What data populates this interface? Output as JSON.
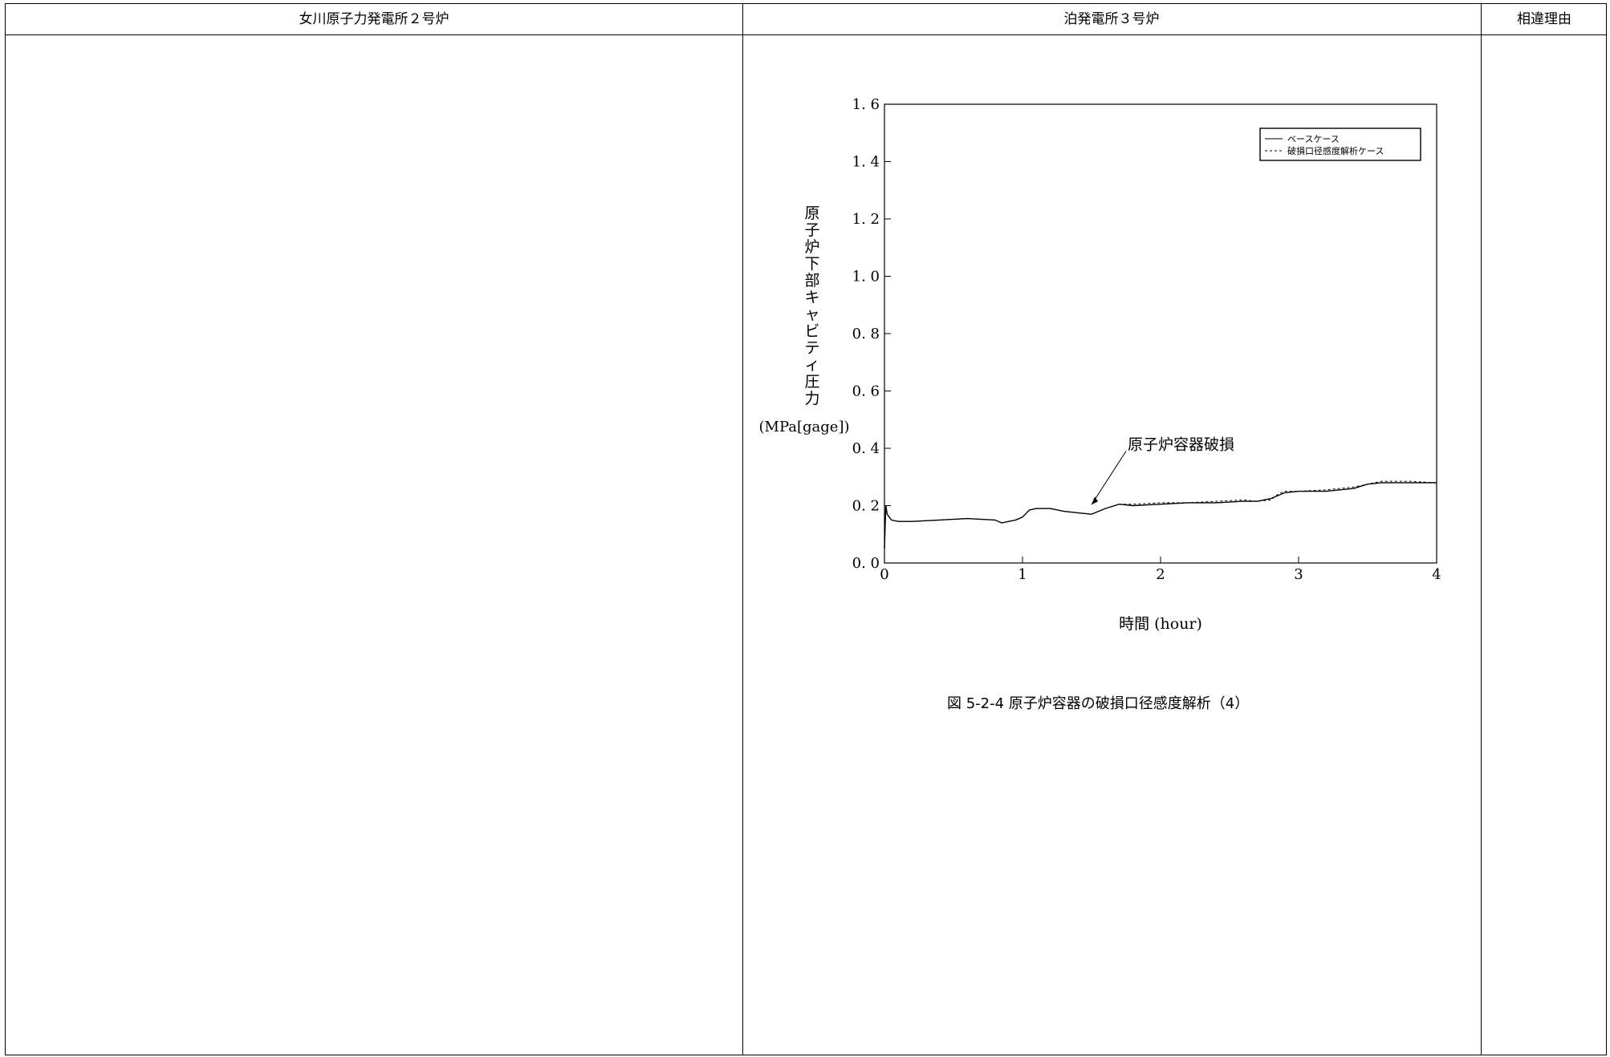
{
  "table": {
    "headers": [
      "女川原子力発電所２号炉",
      "泊発電所３号炉",
      "相違理由"
    ]
  },
  "figure": {
    "caption": "図 5-2-4 原子炉容器の破損口径感度解析（4）"
  },
  "chart_data": {
    "type": "line",
    "title": "",
    "ylabel_lines": [
      "原",
      "子",
      "炉",
      "下",
      "部",
      "キ",
      "ャ",
      "ビ",
      "テ",
      "ィ",
      "圧",
      "力"
    ],
    "ylabel_unit": "(MPa[gage])",
    "xlabel": "時間 (hour)",
    "xlim": [
      0,
      4
    ],
    "ylim": [
      0,
      1.6
    ],
    "xticks": [
      "0",
      "1",
      "2",
      "3",
      "4"
    ],
    "yticks": [
      "0. 0",
      "0. 2",
      "0. 4",
      "0. 6",
      "0. 8",
      "1. 0",
      "1. 2",
      "1. 4",
      "1. 6"
    ],
    "legend_position": "top-right",
    "annotation": {
      "text": "原子炉容器破損",
      "x": 1.5,
      "y": 0.17
    },
    "series": [
      {
        "name": "ベースケース",
        "style": "solid",
        "x": [
          0,
          0.01,
          0.02,
          0.05,
          0.1,
          0.2,
          0.4,
          0.6,
          0.8,
          0.85,
          0.9,
          0.95,
          1.0,
          1.05,
          1.1,
          1.2,
          1.3,
          1.4,
          1.5,
          1.6,
          1.7,
          1.8,
          2.0,
          2.2,
          2.4,
          2.6,
          2.7,
          2.8,
          2.85,
          2.9,
          3.0,
          3.2,
          3.4,
          3.5,
          3.6,
          3.8,
          4.0
        ],
        "y": [
          0.05,
          0.2,
          0.17,
          0.15,
          0.145,
          0.145,
          0.15,
          0.155,
          0.15,
          0.14,
          0.145,
          0.15,
          0.16,
          0.185,
          0.19,
          0.19,
          0.18,
          0.175,
          0.17,
          0.19,
          0.205,
          0.2,
          0.205,
          0.21,
          0.21,
          0.215,
          0.215,
          0.225,
          0.235,
          0.245,
          0.25,
          0.25,
          0.26,
          0.275,
          0.28,
          0.28,
          0.28
        ]
      },
      {
        "name": "破損口径感度解析ケース",
        "style": "dashed",
        "x": [
          0,
          0.01,
          0.02,
          0.05,
          0.1,
          0.2,
          0.4,
          0.6,
          0.8,
          0.85,
          0.9,
          0.95,
          1.0,
          1.05,
          1.1,
          1.2,
          1.3,
          1.4,
          1.5,
          1.6,
          1.7,
          1.8,
          2.0,
          2.2,
          2.4,
          2.6,
          2.7,
          2.8,
          2.85,
          2.9,
          3.0,
          3.2,
          3.4,
          3.5,
          3.6,
          3.8,
          4.0
        ],
        "y": [
          0.05,
          0.2,
          0.17,
          0.15,
          0.145,
          0.145,
          0.15,
          0.155,
          0.15,
          0.14,
          0.145,
          0.15,
          0.16,
          0.185,
          0.19,
          0.19,
          0.18,
          0.175,
          0.17,
          0.19,
          0.205,
          0.205,
          0.21,
          0.21,
          0.215,
          0.22,
          0.215,
          0.22,
          0.24,
          0.25,
          0.25,
          0.255,
          0.265,
          0.275,
          0.285,
          0.285,
          0.28
        ]
      }
    ]
  }
}
